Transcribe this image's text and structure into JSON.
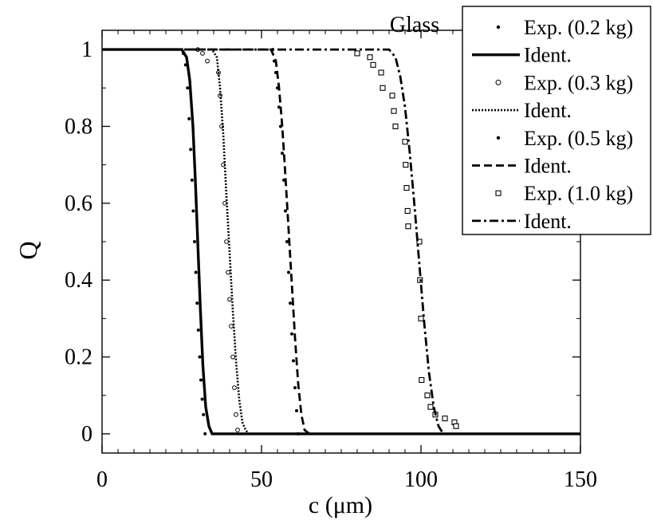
{
  "chart_data": {
    "type": "line",
    "annotation": "Glass",
    "xlabel": "c (μm)",
    "ylabel": "Q",
    "xlim": [
      0,
      150
    ],
    "ylim": [
      -0.05,
      1.05
    ],
    "x_ticks": [
      0,
      50,
      100,
      150
    ],
    "x_tick_labels": [
      "0",
      "50",
      "100",
      "150"
    ],
    "y_ticks": [
      0,
      0.2,
      0.4,
      0.6,
      0.8,
      1
    ],
    "y_tick_labels": [
      "0",
      "0.2",
      "0.4",
      "0.6",
      "0.8",
      "1"
    ],
    "grid": false,
    "legend_position": "top-right",
    "series": [
      {
        "name": "Exp. (0.2 kg)",
        "kind": "points",
        "marker": "dot",
        "x": [
          25.5,
          26.2,
          26.8,
          27.3,
          27.8,
          28.2,
          28.6,
          29.0,
          29.4,
          29.8,
          30.2,
          30.6,
          31.0,
          31.4,
          31.8,
          32.3
        ],
        "y": [
          0.99,
          0.96,
          0.9,
          0.82,
          0.74,
          0.66,
          0.58,
          0.5,
          0.42,
          0.34,
          0.27,
          0.2,
          0.14,
          0.09,
          0.05,
          0.0
        ]
      },
      {
        "name": "Ident.",
        "kind": "line",
        "dash": "solid",
        "x": [
          0,
          25.0,
          26.5,
          27.5,
          28.5,
          29.3,
          30.0,
          30.8,
          31.6,
          32.5,
          33.5,
          34.5,
          150
        ],
        "y": [
          1,
          1,
          0.98,
          0.92,
          0.8,
          0.65,
          0.5,
          0.33,
          0.18,
          0.07,
          0.02,
          0,
          0
        ]
      },
      {
        "name": "Exp. (0.3 kg)",
        "kind": "points",
        "marker": "circle",
        "x": [
          30.0,
          31.5,
          33.0,
          36.5,
          37.0,
          37.5,
          38.0,
          38.5,
          39.0,
          39.5,
          40.0,
          40.5,
          41.0,
          41.5,
          42.0,
          42.5
        ],
        "y": [
          1.0,
          0.99,
          0.97,
          0.94,
          0.88,
          0.8,
          0.7,
          0.6,
          0.5,
          0.42,
          0.35,
          0.28,
          0.2,
          0.12,
          0.05,
          0.01
        ]
      },
      {
        "name": "Ident.",
        "kind": "line",
        "dash": "dotted",
        "x": [
          0,
          34.5,
          36.0,
          37.0,
          38.0,
          39.0,
          40.0,
          41.0,
          42.0,
          43.0,
          44.0,
          45.0,
          46.0,
          150
        ],
        "y": [
          1,
          1,
          0.98,
          0.9,
          0.78,
          0.62,
          0.47,
          0.32,
          0.19,
          0.09,
          0.03,
          0.01,
          0,
          0
        ]
      },
      {
        "name": "Exp. (0.5 kg)",
        "kind": "points",
        "marker": "dot",
        "x": [
          53.5,
          54.0,
          54.5,
          55.0,
          55.5,
          56.0,
          56.5,
          57.0,
          57.5,
          58.0,
          58.5,
          59.0,
          59.5,
          60.0,
          60.5,
          61.0,
          61.5
        ],
        "y": [
          1.0,
          0.97,
          0.94,
          0.9,
          0.85,
          0.8,
          0.73,
          0.66,
          0.58,
          0.5,
          0.42,
          0.34,
          0.26,
          0.19,
          0.12,
          0.06,
          0.0
        ]
      },
      {
        "name": "Ident.",
        "kind": "line",
        "dash": "dashed",
        "x": [
          0,
          53.0,
          54.5,
          55.5,
          56.5,
          57.5,
          58.5,
          59.5,
          60.5,
          61.5,
          62.5,
          63.5,
          65.0,
          150
        ],
        "y": [
          1,
          1,
          0.97,
          0.9,
          0.8,
          0.67,
          0.53,
          0.39,
          0.25,
          0.13,
          0.05,
          0.01,
          0,
          0
        ]
      },
      {
        "name": "Exp. (1.0 kg)",
        "kind": "points",
        "marker": "square",
        "x": [
          80.0,
          84.0,
          85.0,
          87.5,
          88.0,
          91.0,
          91.5,
          92.0,
          95.0,
          95.2,
          95.5,
          95.8,
          96.0,
          99.5,
          99.7,
          100.0,
          100.2,
          102.0,
          103.0,
          104.5,
          107.5,
          110.5,
          111.0
        ],
        "y": [
          0.99,
          0.98,
          0.96,
          0.94,
          0.9,
          0.88,
          0.84,
          0.8,
          0.76,
          0.7,
          0.64,
          0.58,
          0.54,
          0.5,
          0.4,
          0.3,
          0.14,
          0.1,
          0.07,
          0.05,
          0.04,
          0.03,
          0.02
        ]
      },
      {
        "name": "Ident.",
        "kind": "line",
        "dash": "dashdot",
        "x": [
          0,
          90.0,
          92.0,
          93.5,
          95.0,
          96.5,
          98.0,
          99.5,
          101.0,
          102.5,
          104.0,
          105.5,
          107.0,
          150
        ],
        "y": [
          1,
          1,
          0.98,
          0.93,
          0.85,
          0.73,
          0.59,
          0.44,
          0.29,
          0.16,
          0.07,
          0.02,
          0,
          0
        ]
      }
    ]
  }
}
